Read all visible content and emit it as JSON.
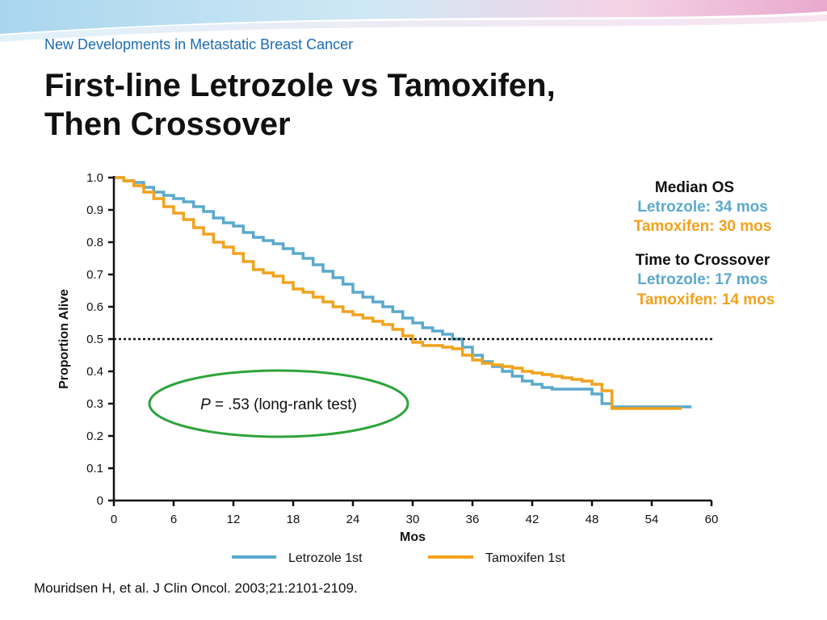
{
  "header": {
    "subtitle": "New Developments in Metastatic Breast Cancer",
    "title_line1": "First-line Letrozole vs Tamoxifen,",
    "title_line2": "Then Crossover"
  },
  "colors": {
    "letrozole": "#5aa9cc",
    "tamoxifen": "#f2a21b",
    "ellipse": "#2ea33a",
    "header_text": "#1b6cb3"
  },
  "annotations": {
    "median_os_title": "Median OS",
    "median_os_letrozole": "Letrozole: 34 mos",
    "median_os_tamoxifen": "Tamoxifen: 30 mos",
    "crossover_title": "Time to Crossover",
    "crossover_letrozole": "Letrozole: 17 mos",
    "crossover_tamoxifen": "Tamoxifen: 14 mos",
    "p_label": "P",
    "p_value_text": " = .53 (long-rank test)"
  },
  "chart_data": {
    "type": "line",
    "title": "",
    "xlabel": "Mos",
    "ylabel": "Proportion Alive",
    "xlim": [
      0,
      60
    ],
    "ylim": [
      0,
      1.0
    ],
    "x_ticks": [
      "0",
      "6",
      "12",
      "18",
      "24",
      "30",
      "36",
      "42",
      "48",
      "54",
      "60"
    ],
    "x_tick_values": [
      0,
      6,
      12,
      18,
      24,
      30,
      36,
      42,
      48,
      54,
      60
    ],
    "y_ticks": [
      "0",
      "0.1",
      "0.2",
      "0.3",
      "0.4",
      "0.5",
      "0.6",
      "0.7",
      "0.8",
      "0.9",
      "1.0"
    ],
    "y_tick_values": [
      0,
      0.1,
      0.2,
      0.3,
      0.4,
      0.5,
      0.6,
      0.7,
      0.8,
      0.9,
      1.0
    ],
    "reference_line": 0.5,
    "grid": false,
    "legend_position": "bottom",
    "series": [
      {
        "name": "Letrozole 1st",
        "x": [
          0,
          1,
          2,
          3,
          4,
          5,
          6,
          7,
          8,
          9,
          10,
          11,
          12,
          13,
          14,
          15,
          16,
          17,
          18,
          19,
          20,
          21,
          22,
          23,
          24,
          25,
          26,
          27,
          28,
          29,
          30,
          31,
          32,
          33,
          34,
          35,
          36,
          37,
          38,
          39,
          40,
          41,
          42,
          43,
          44,
          45,
          46,
          47,
          48,
          49,
          50,
          51,
          52,
          53,
          54,
          55,
          56,
          57,
          58
        ],
        "y": [
          1.0,
          0.99,
          0.985,
          0.97,
          0.955,
          0.945,
          0.935,
          0.925,
          0.91,
          0.895,
          0.875,
          0.86,
          0.85,
          0.83,
          0.815,
          0.805,
          0.795,
          0.78,
          0.765,
          0.75,
          0.73,
          0.71,
          0.69,
          0.67,
          0.645,
          0.63,
          0.615,
          0.6,
          0.585,
          0.565,
          0.55,
          0.535,
          0.525,
          0.515,
          0.5,
          0.475,
          0.45,
          0.43,
          0.415,
          0.4,
          0.385,
          0.37,
          0.36,
          0.35,
          0.345,
          0.345,
          0.345,
          0.345,
          0.33,
          0.3,
          0.29,
          0.29,
          0.29,
          0.29,
          0.29,
          0.29,
          0.29,
          0.29,
          0.29
        ]
      },
      {
        "name": "Tamoxifen 1st",
        "x": [
          0,
          1,
          2,
          3,
          4,
          5,
          6,
          7,
          8,
          9,
          10,
          11,
          12,
          13,
          14,
          15,
          16,
          17,
          18,
          19,
          20,
          21,
          22,
          23,
          24,
          25,
          26,
          27,
          28,
          29,
          30,
          31,
          32,
          33,
          34,
          35,
          36,
          37,
          38,
          39,
          40,
          41,
          42,
          43,
          44,
          45,
          46,
          47,
          48,
          49,
          50,
          51,
          52,
          53,
          54,
          55,
          56,
          57
        ],
        "y": [
          1.0,
          0.99,
          0.975,
          0.955,
          0.935,
          0.91,
          0.89,
          0.87,
          0.845,
          0.825,
          0.8,
          0.785,
          0.765,
          0.74,
          0.715,
          0.705,
          0.695,
          0.675,
          0.655,
          0.645,
          0.63,
          0.615,
          0.6,
          0.585,
          0.575,
          0.565,
          0.555,
          0.545,
          0.53,
          0.51,
          0.49,
          0.48,
          0.48,
          0.475,
          0.47,
          0.45,
          0.435,
          0.425,
          0.42,
          0.415,
          0.41,
          0.4,
          0.395,
          0.39,
          0.385,
          0.38,
          0.375,
          0.37,
          0.36,
          0.34,
          0.285,
          0.285,
          0.285,
          0.285,
          0.285,
          0.285,
          0.285,
          0.285
        ]
      }
    ]
  },
  "citation": "Mouridsen H, et al. J Clin Oncol. 2003;21:2101-2109."
}
